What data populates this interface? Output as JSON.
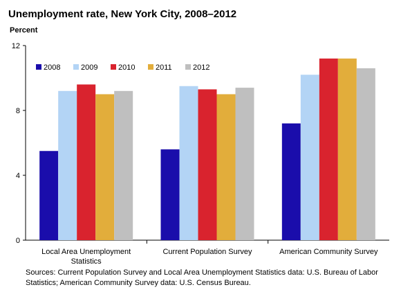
{
  "chart_data": {
    "type": "bar",
    "title": "Unemployment rate, New York City, 2008–2012",
    "ylabel": "Percent",
    "xlabel": "",
    "ylim": [
      0,
      12
    ],
    "yticks": [
      0,
      4,
      8,
      12
    ],
    "grid": false,
    "legend": "top-left, inside plot",
    "categories": [
      [
        "Local Area Unemployment",
        "Statistics"
      ],
      [
        "Current Population Survey"
      ],
      [
        "American Community Survey"
      ]
    ],
    "series": [
      {
        "name": "2008",
        "color": "#1a0dab",
        "values": [
          5.5,
          5.6,
          7.2
        ]
      },
      {
        "name": "2009",
        "color": "#b3d4f5",
        "values": [
          9.2,
          9.5,
          10.2
        ]
      },
      {
        "name": "2010",
        "color": "#d9232e",
        "values": [
          9.6,
          9.3,
          11.2
        ]
      },
      {
        "name": "2011",
        "color": "#e2ad3b",
        "values": [
          9.0,
          9.0,
          11.2
        ]
      },
      {
        "name": "2012",
        "color": "#bfbfbf",
        "values": [
          9.2,
          9.4,
          10.6
        ]
      }
    ]
  },
  "source_note": "Sources: Current Population Survey and Local Area Unemployment Statistics data: U.S. Bureau of Labor Statistics; American Community Survey data: U.S. Census Bureau."
}
